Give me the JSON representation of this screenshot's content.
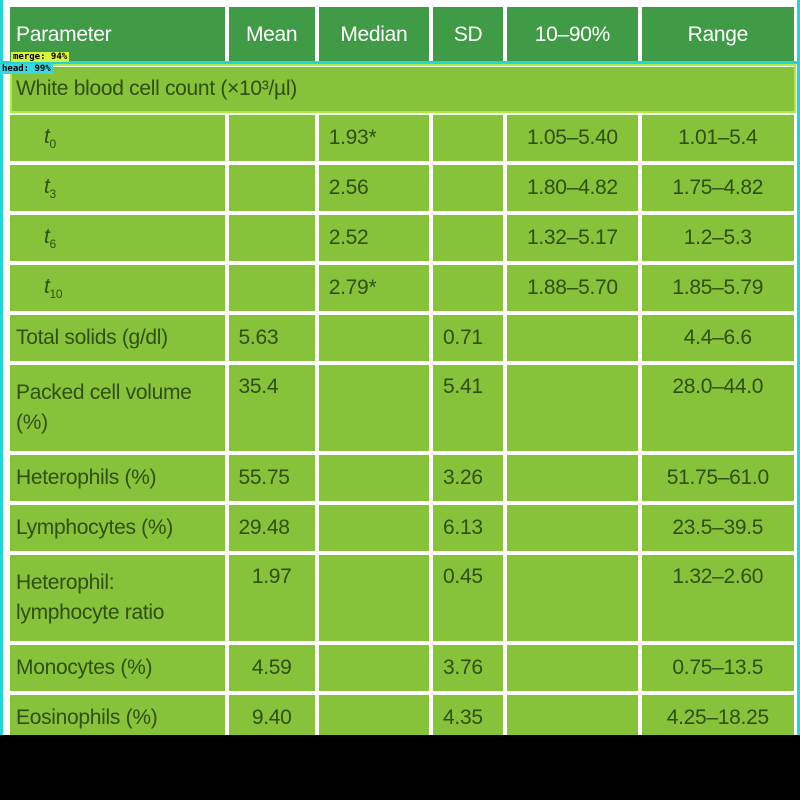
{
  "table": {
    "headers": [
      "Parameter",
      "Mean",
      "Median",
      "SD",
      "10–90%",
      "Range"
    ],
    "section_label": "White blood cell count (×10³/µl)",
    "timepoints": [
      {
        "label": "t",
        "sub": "0",
        "mean": "",
        "median": "1.93*",
        "sd": "",
        "p10_90": "1.05–5.40",
        "range": "1.01–5.4"
      },
      {
        "label": "t",
        "sub": "3",
        "mean": "",
        "median": "2.56",
        "sd": "",
        "p10_90": "1.80–4.82",
        "range": "1.75–4.82"
      },
      {
        "label": "t",
        "sub": "6",
        "mean": "",
        "median": "2.52",
        "sd": "",
        "p10_90": "1.32–5.17",
        "range": "1.2–5.3"
      },
      {
        "label": "t",
        "sub": "10",
        "mean": "",
        "median": "2.79*",
        "sd": "",
        "p10_90": "1.88–5.70",
        "range": "1.85–5.79"
      }
    ],
    "rows": [
      {
        "param": "Total solids (g/dl)",
        "mean": "5.63",
        "median": "",
        "sd": "0.71",
        "p10_90": "",
        "range": "4.4–6.6"
      },
      {
        "param": "Packed cell volume (%)",
        "mean": "35.4",
        "median": "",
        "sd": "5.41",
        "p10_90": "",
        "range": "28.0–44.0"
      },
      {
        "param": "Heterophils (%)",
        "mean": "55.75",
        "median": "",
        "sd": "3.26",
        "p10_90": "",
        "range": "51.75–61.0"
      },
      {
        "param": "Lymphocytes (%)",
        "mean": "29.48",
        "median": "",
        "sd": "6.13",
        "p10_90": "",
        "range": "23.5–39.5"
      },
      {
        "param": "Heterophil: lymphocyte ratio",
        "mean": "1.97",
        "median": "",
        "sd": "0.45",
        "p10_90": "",
        "range": "1.32–2.60"
      },
      {
        "param": "Monocytes (%)",
        "mean": "4.59",
        "median": "",
        "sd": "3.76",
        "p10_90": "",
        "range": "0.75–13.5"
      },
      {
        "param": "Eosinophils (%)",
        "mean": "9.40",
        "median": "",
        "sd": "4.35",
        "p10_90": "",
        "range": "4.25–18.25"
      }
    ]
  },
  "detection_tags": {
    "merge": "merge: 94%",
    "head": "head: 99%"
  },
  "colors": {
    "header_bg": "#3f9b45",
    "cell_bg": "#86c23a",
    "text": "#2f4f14",
    "overlay_green": "#a5f23a",
    "overlay_teal": "#22d6d6"
  }
}
